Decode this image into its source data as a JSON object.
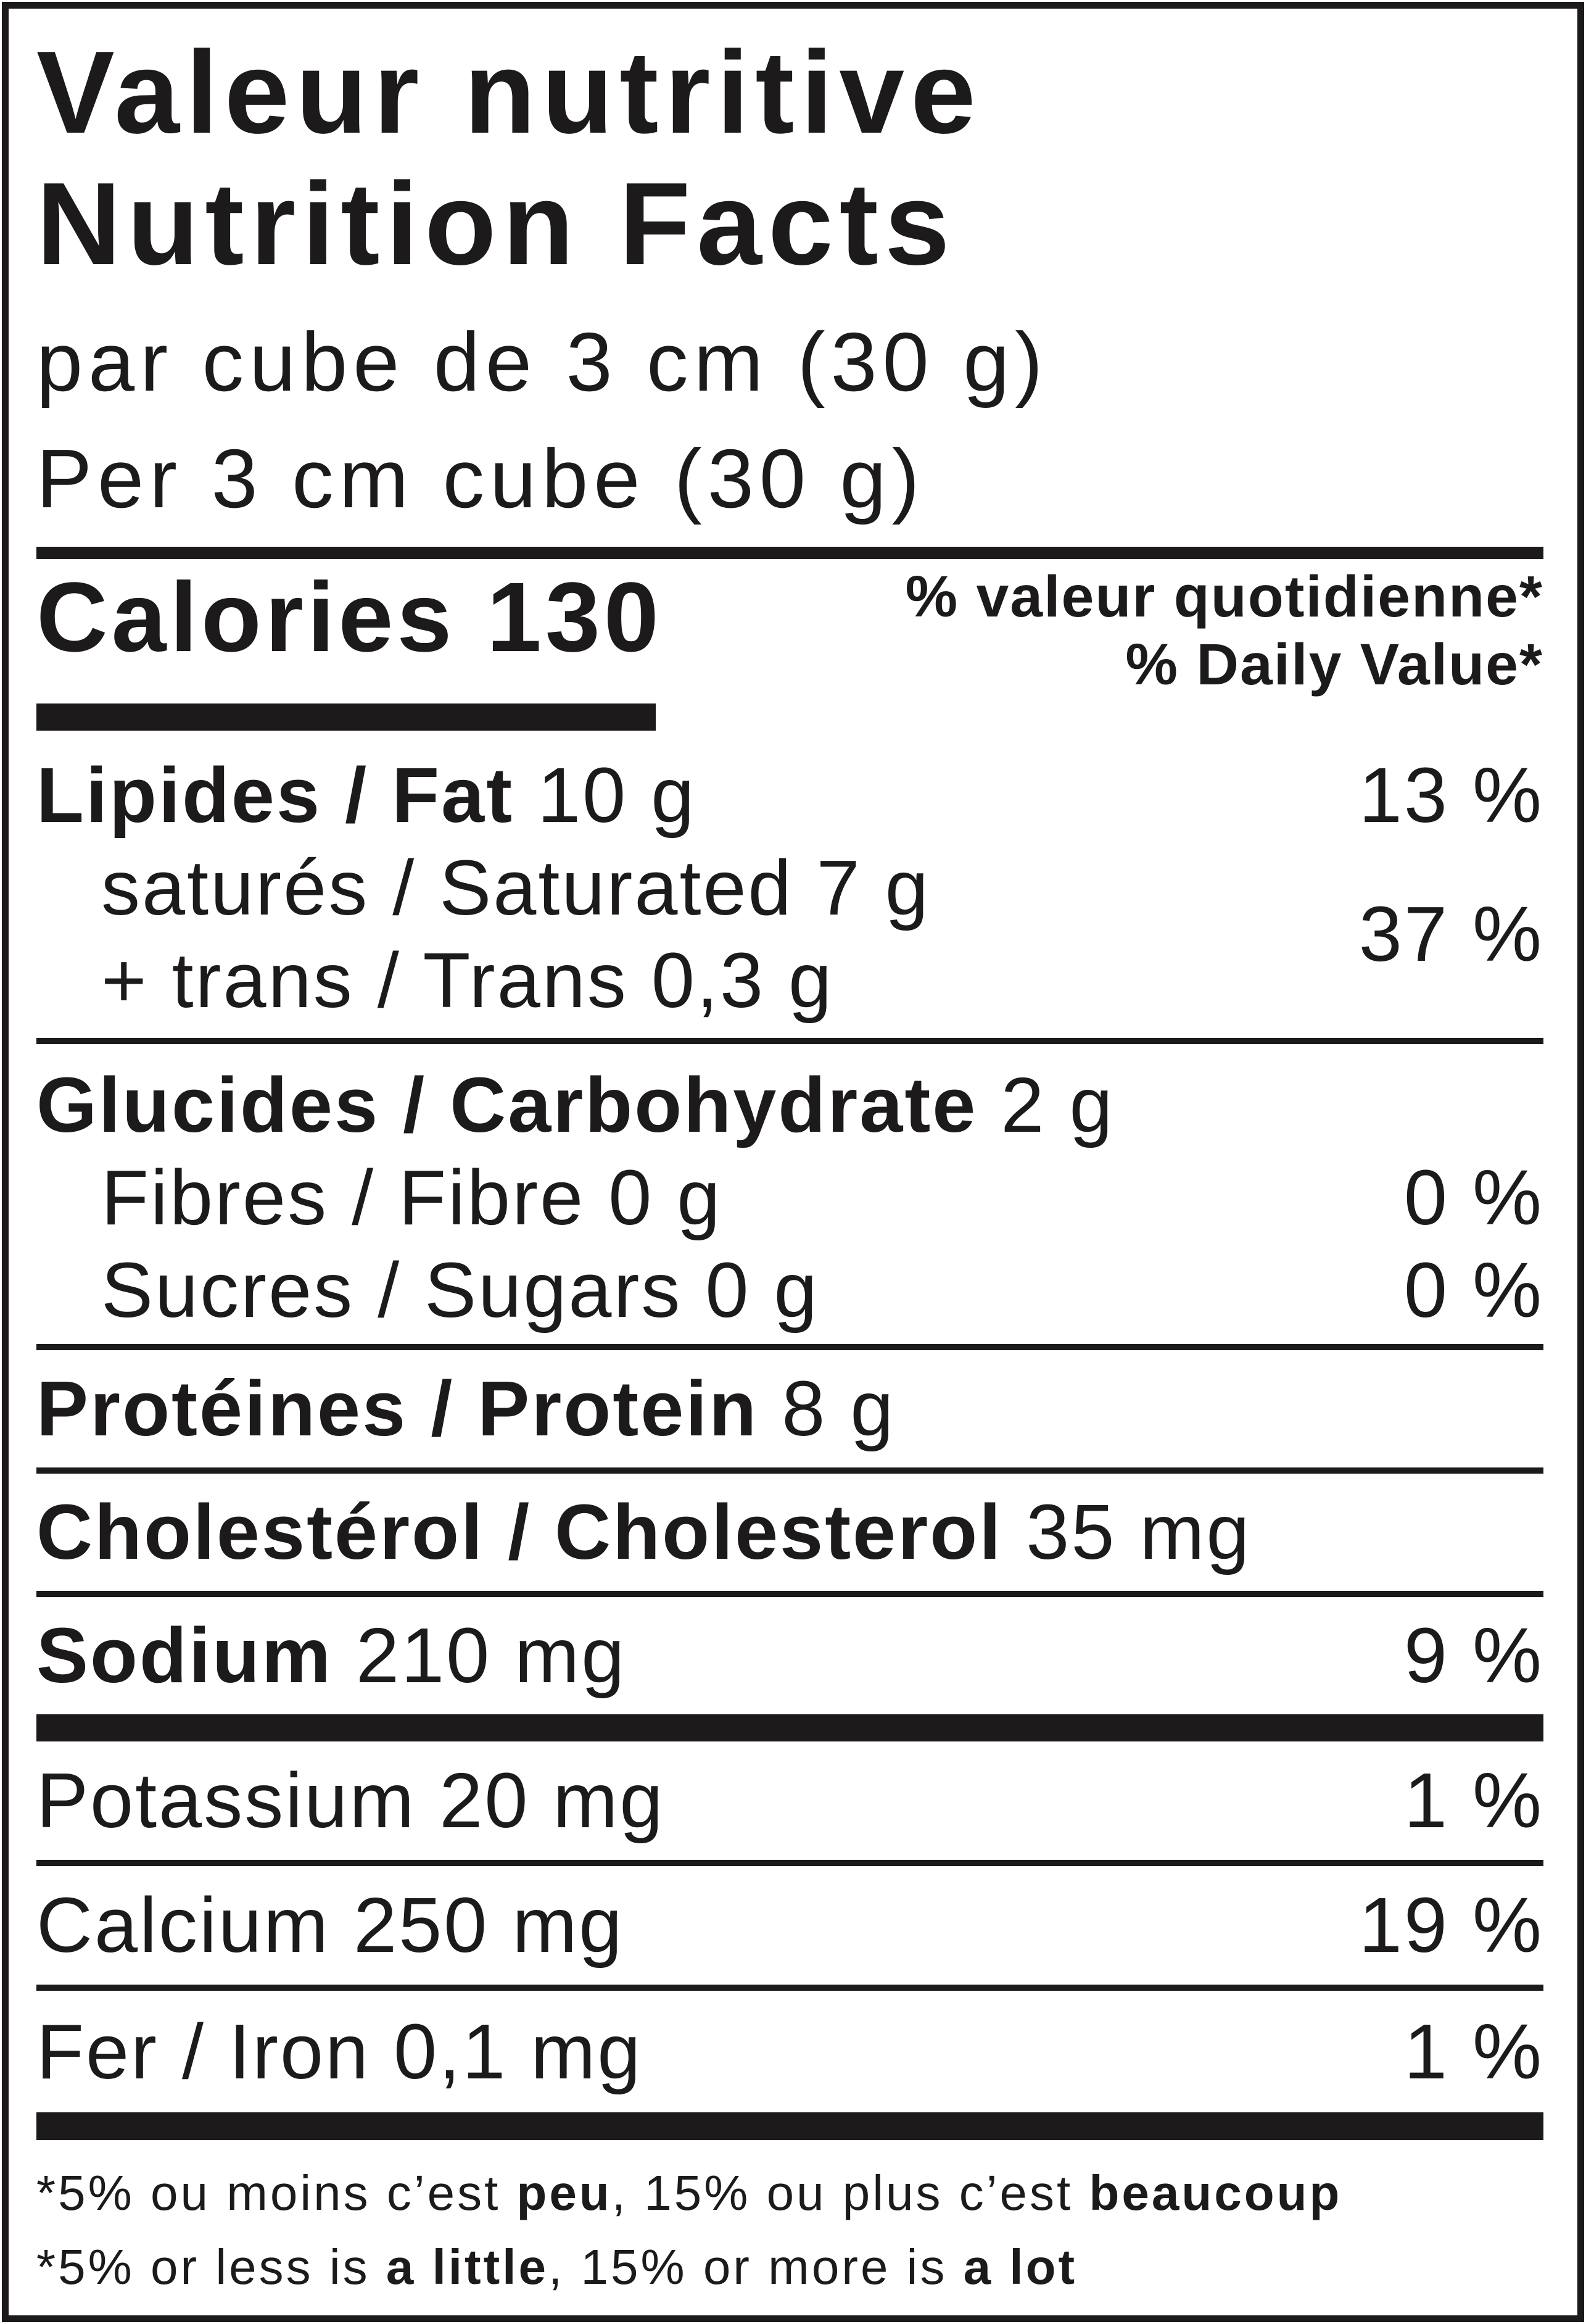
{
  "header": {
    "title_fr": "Valeur nutritive",
    "title_en": "Nutrition Facts",
    "serving_fr": "par cube de 3 cm (30 g)",
    "serving_en": "Per 3 cm cube (30 g)"
  },
  "calories": {
    "label": "Calories",
    "value": "130"
  },
  "daily_value": {
    "fr": "% valeur quotidienne*",
    "en": "% Daily Value*"
  },
  "nutrients": {
    "fat": {
      "label": "Lipides / Fat",
      "amount": "10 g",
      "dv": "13 %"
    },
    "saturated": {
      "label": "saturés / Saturated",
      "amount": "7 g"
    },
    "trans": {
      "label": "+ trans / Trans",
      "amount": "0,3 g"
    },
    "sat_trans_dv": "37 %",
    "carbohydrate": {
      "label": "Glucides / Carbohydrate",
      "amount": "2 g"
    },
    "fibre": {
      "label": "Fibres / Fibre",
      "amount": "0 g",
      "dv": "0 %"
    },
    "sugars": {
      "label": "Sucres / Sugars",
      "amount": "0 g",
      "dv": "0 %"
    },
    "protein": {
      "label": "Protéines / Protein",
      "amount": "8 g"
    },
    "cholesterol": {
      "label": "Cholestérol / Cholesterol",
      "amount": "35 mg"
    },
    "sodium": {
      "label": "Sodium",
      "amount": "210 mg",
      "dv": "9 %"
    },
    "potassium": {
      "label": "Potassium",
      "amount": "20 mg",
      "dv": "1 %"
    },
    "calcium": {
      "label": "Calcium",
      "amount": "250 mg",
      "dv": "19 %"
    },
    "iron": {
      "label": "Fer / Iron",
      "amount": "0,1 mg",
      "dv": "1 %"
    }
  },
  "footnote": {
    "fr": {
      "p1": "*5% ou moins c’est ",
      "b1": "peu",
      "p2": ", 15% ou plus c’est ",
      "b2": "beaucoup"
    },
    "en": {
      "p1": "*5% or less is ",
      "b1": "a little",
      "p2": ", 15% or more is ",
      "b2": "a lot"
    }
  },
  "colors": {
    "ink": "#1d1a1b",
    "paper": "#ffffff"
  }
}
